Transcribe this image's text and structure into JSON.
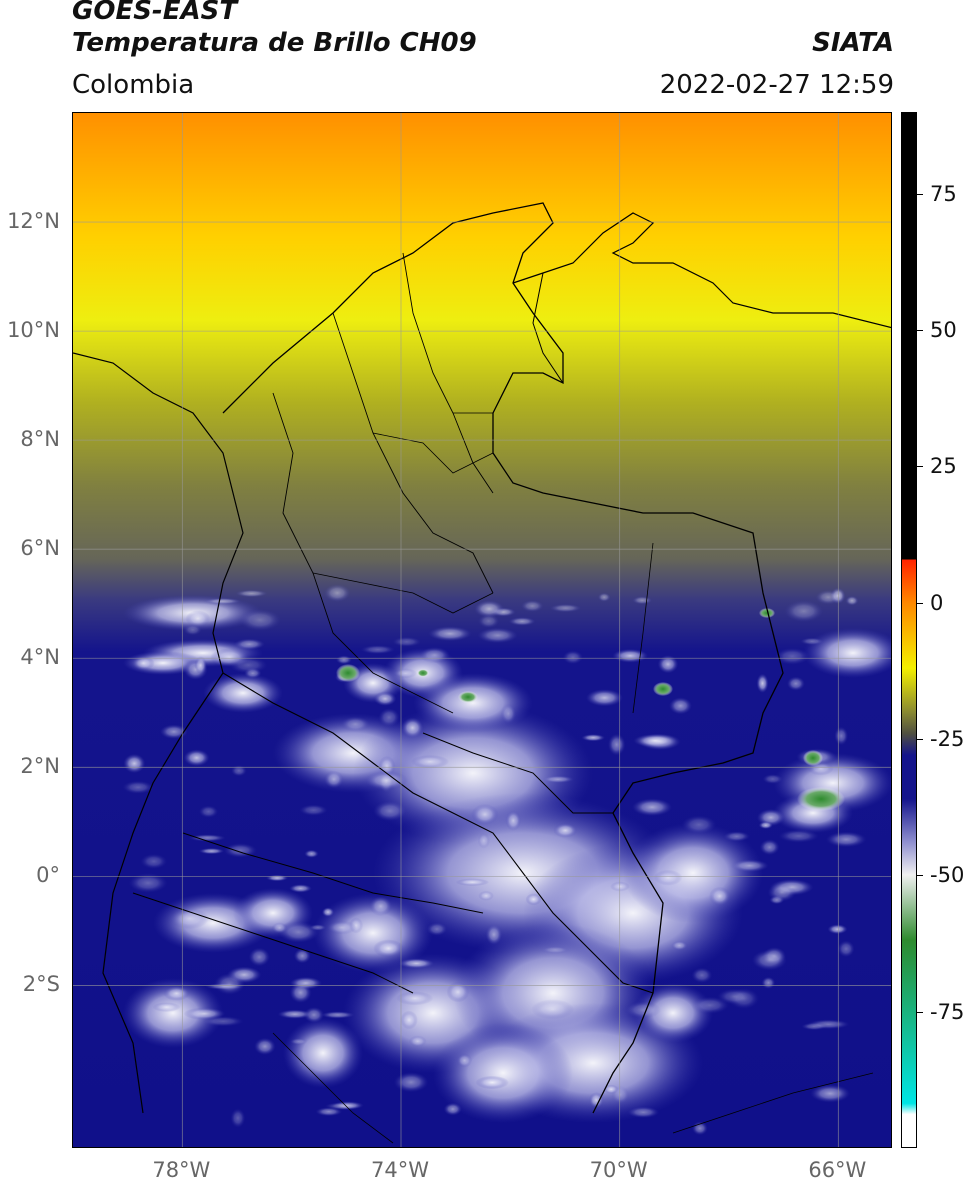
{
  "header": {
    "satellite": "GOES-EAST",
    "product": "Temperatura de Brillo CH09",
    "brand": "SIATA",
    "region": "Colombia",
    "datetime": "2022-02-27 12:59"
  },
  "map": {
    "extent": {
      "lon_min": -80.0,
      "lon_max": -65.0,
      "lat_min": -5.0,
      "lat_max": 14.0
    },
    "lat_ticks": [
      {
        "label": "12°N",
        "lat": 12
      },
      {
        "label": "10°N",
        "lat": 10
      },
      {
        "label": "8°N",
        "lat": 8
      },
      {
        "label": "6°N",
        "lat": 6
      },
      {
        "label": "4°N",
        "lat": 4
      },
      {
        "label": "2°N",
        "lat": 2
      },
      {
        "label": "0°",
        "lat": 0
      },
      {
        "label": "2°S",
        "lat": -2
      }
    ],
    "lon_ticks": [
      {
        "label": "78°W",
        "lon": -78
      },
      {
        "label": "74°W",
        "lon": -74
      },
      {
        "label": "70°W",
        "lon": -70
      },
      {
        "label": "66°W",
        "lon": -66
      }
    ],
    "gridlines": true
  },
  "colorbar": {
    "range": [
      -100,
      90
    ],
    "ticks": [
      {
        "label": "75",
        "value": 75
      },
      {
        "label": "50",
        "value": 50
      },
      {
        "label": "25",
        "value": 25
      },
      {
        "label": "0",
        "value": 0
      },
      {
        "label": "-25",
        "value": -25
      },
      {
        "label": "-50",
        "value": -50
      },
      {
        "label": "-75",
        "value": -75
      }
    ],
    "colors": {
      "white": "#ffffff",
      "cyan": "#00e5e5",
      "green": "#2e8b2e",
      "light_white": "#f0f0f0",
      "lavender": "#9090d0",
      "navy": "#14148c",
      "olive_dark": "#505040",
      "olive": "#8a8a30",
      "yellow": "#f4f000",
      "orange": "#ff8800",
      "red": "#ff2200",
      "black": "#000000"
    }
  }
}
